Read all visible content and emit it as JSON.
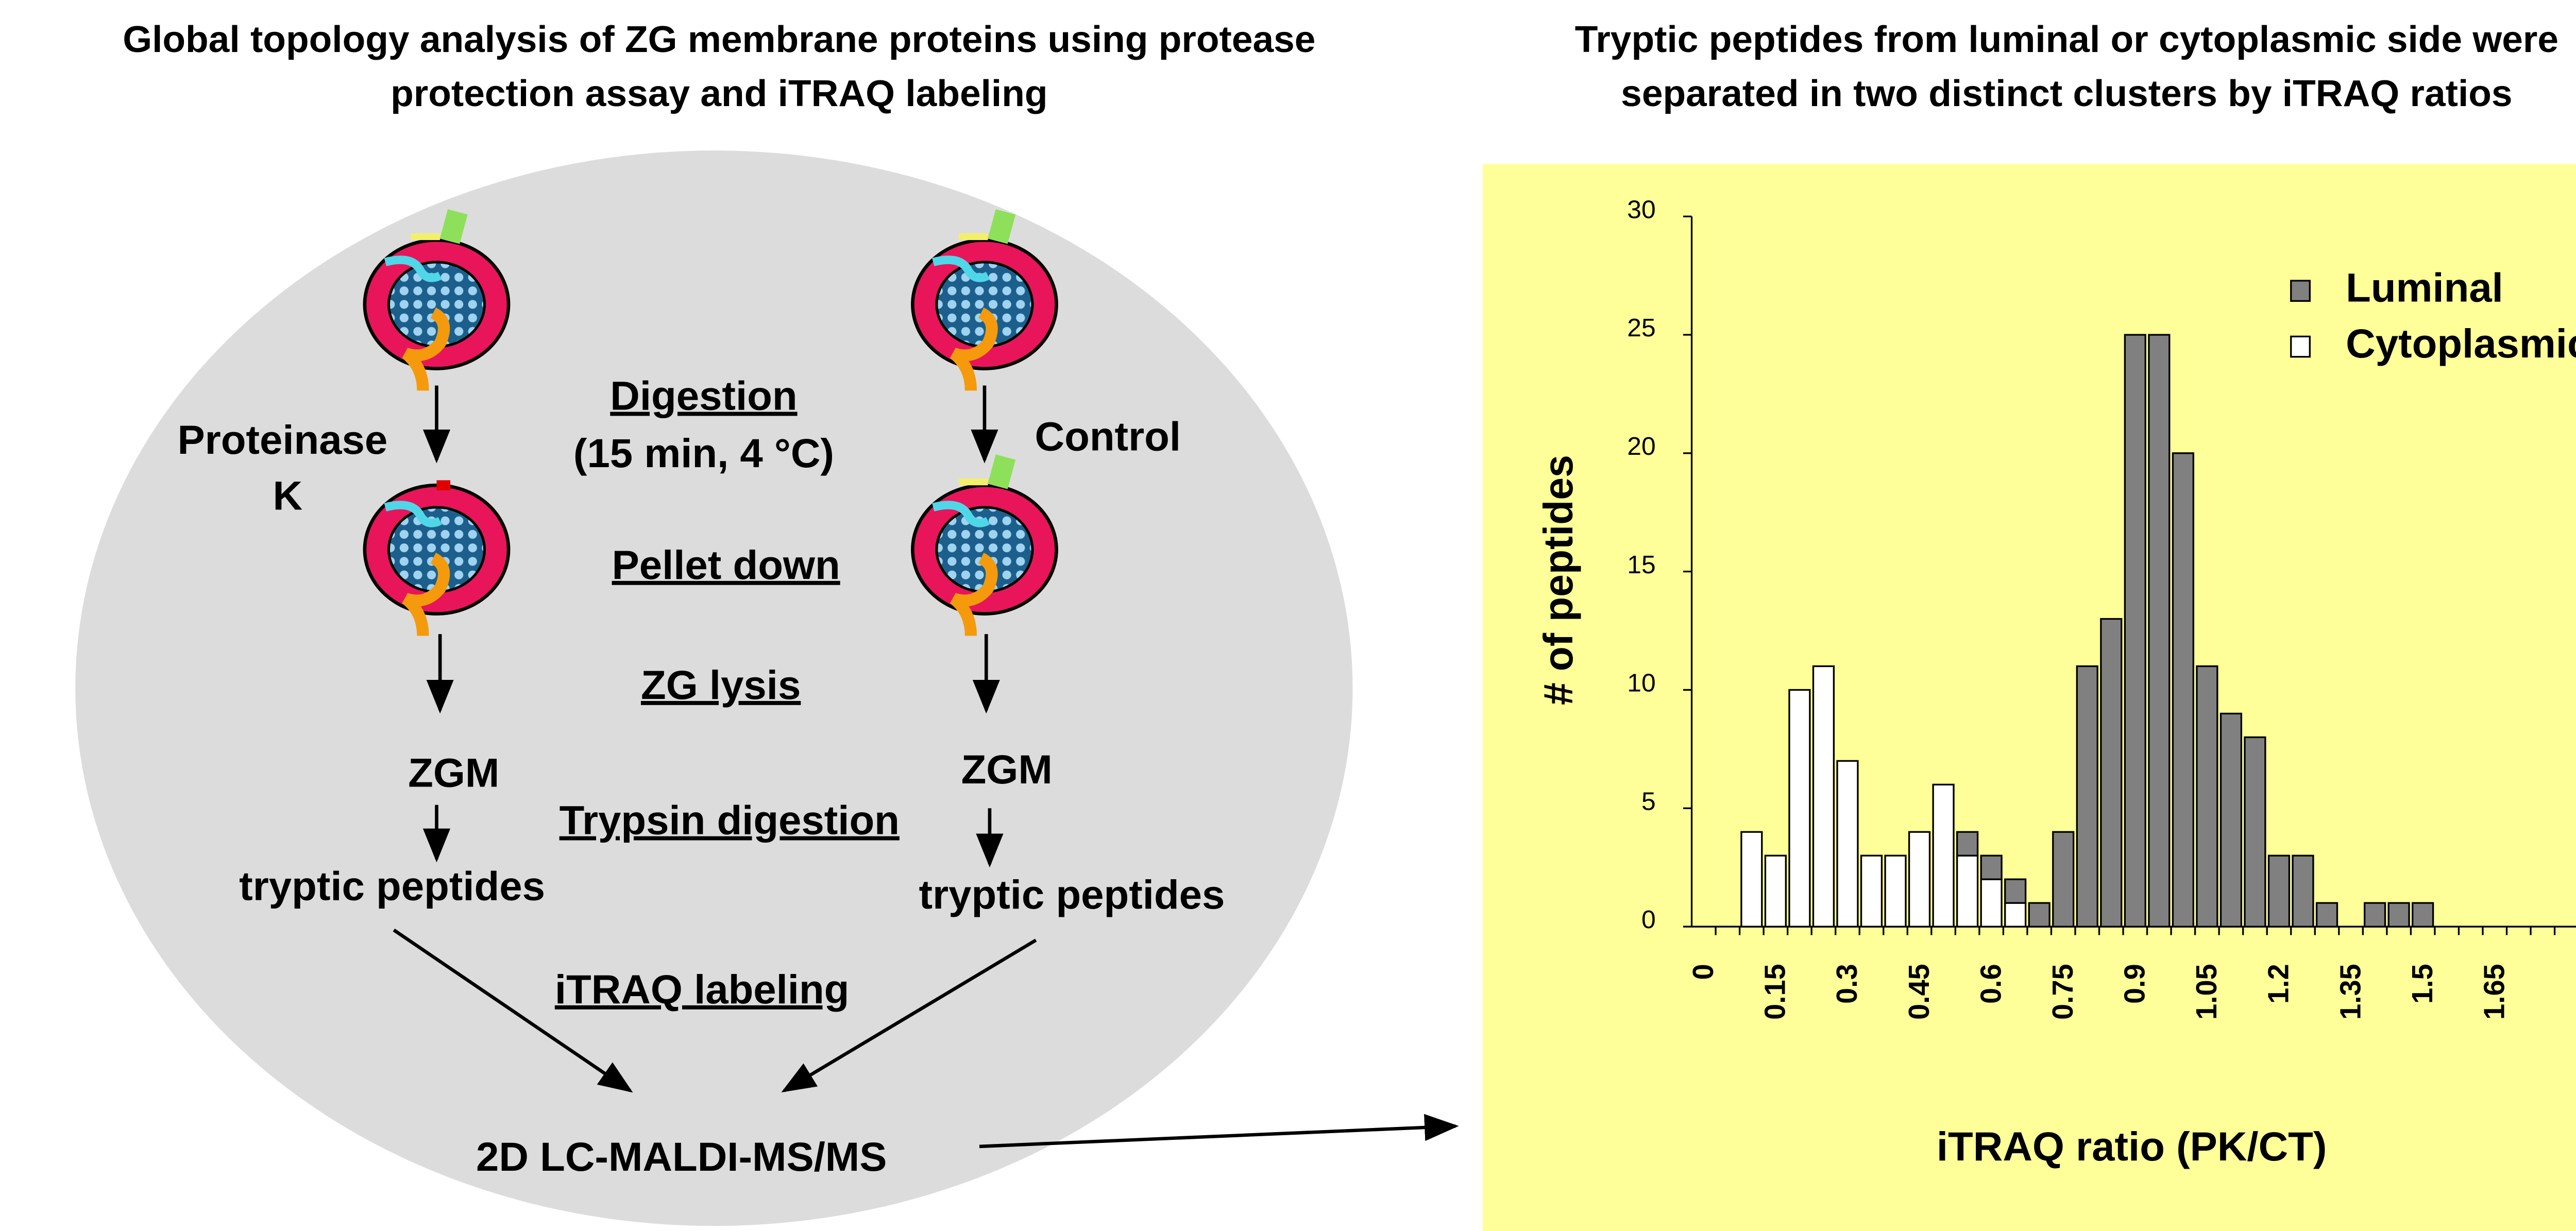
{
  "diagram": {
    "title": [
      "Global topology analysis of ZG membrane proteins using protease",
      "protection assay and iTRAQ labeling"
    ],
    "left_treatment": [
      "Proteinase",
      "K"
    ],
    "right_treatment": "Control",
    "steps": [
      "Digestion",
      "(15 min, 4 °C)",
      "Pellet down",
      "ZG lysis",
      "Trypsin digestion",
      "iTRAQ labeling"
    ],
    "left_fraction": "ZGM",
    "right_fraction": "ZGM",
    "left_product": "tryptic peptides",
    "right_product": "tryptic peptides",
    "analysis": "2D LC-MALDI-MS/MS"
  },
  "chart_data": {
    "type": "bar",
    "stacked": true,
    "title": [
      "Tryptic peptides from luminal or cytoplasmic side were",
      "separated in two distinct clusters by iTRAQ ratios"
    ],
    "x_label": "iTRAQ ratio (PK/CT)",
    "y_label": "# of peptides",
    "categories": [
      "0",
      null,
      null,
      "0.15",
      null,
      null,
      "0.3",
      null,
      null,
      "0.45",
      null,
      null,
      "0.6",
      null,
      null,
      "0.75",
      null,
      null,
      "0.9",
      null,
      null,
      "1.05",
      null,
      null,
      "1.2",
      null,
      null,
      "1.35",
      null,
      null,
      "1.5",
      null,
      null,
      "1.65",
      null,
      null,
      null
    ],
    "series": [
      {
        "name": "Cytoplasmic",
        "color": "#ffffff",
        "values": [
          0,
          0,
          4,
          3,
          10,
          11,
          7,
          3,
          3,
          4,
          6,
          3,
          2,
          1,
          0,
          0,
          0,
          0,
          0,
          0,
          0,
          0,
          0,
          0,
          0,
          0,
          0,
          0,
          0,
          0,
          0,
          0,
          0,
          0,
          0,
          0,
          0
        ]
      },
      {
        "name": "Luminal",
        "color": "#808080",
        "values": [
          0,
          0,
          0,
          0,
          0,
          0,
          0,
          0,
          0,
          0,
          0,
          1,
          1,
          1,
          1,
          4,
          11,
          13,
          25,
          25,
          20,
          11,
          9,
          8,
          3,
          3,
          1,
          0,
          1,
          1,
          1,
          0,
          0,
          0,
          0,
          0,
          0
        ]
      }
    ],
    "legend_order": [
      1,
      0
    ],
    "legend": "top-right",
    "ylim": [
      0,
      30
    ],
    "yticks": [
      0,
      5,
      10,
      15,
      20,
      25,
      30
    ],
    "background": "#ffff99"
  }
}
